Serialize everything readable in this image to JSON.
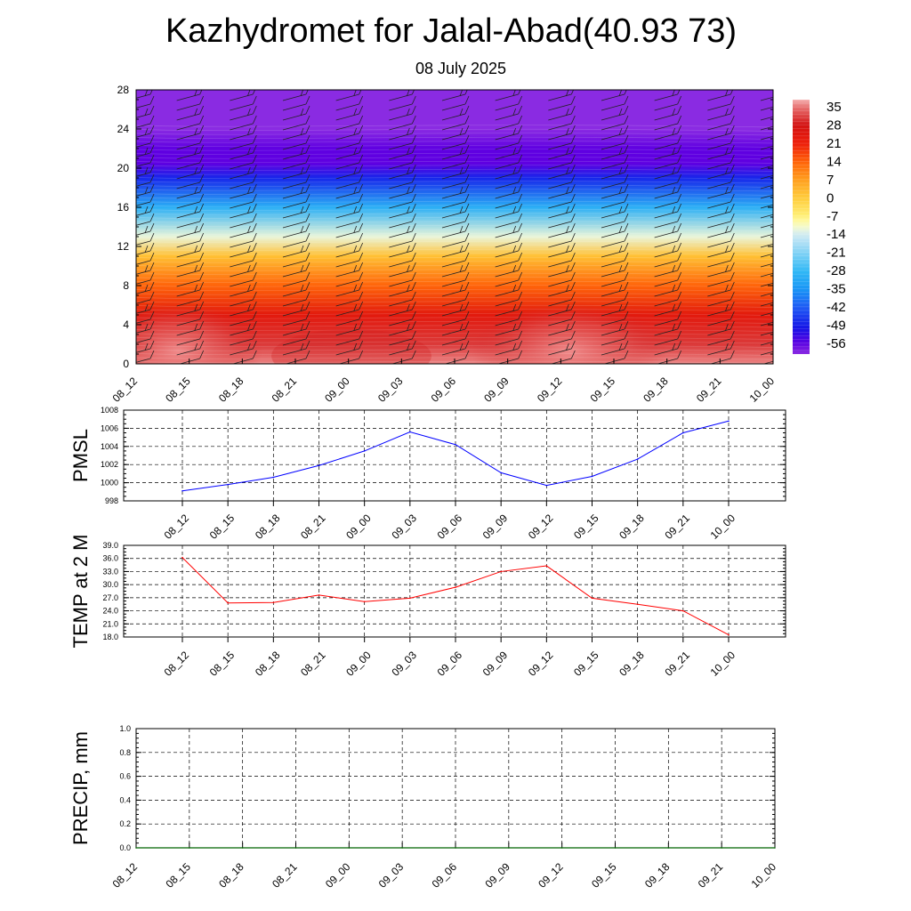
{
  "page": {
    "title": "Kazhydromet for Jalal-Abad(40.93 73)",
    "subtitle": "08 July 2025"
  },
  "chart_data": [
    {
      "id": "vertical-cross-section",
      "type": "heatmap",
      "x_ticks": [
        "08_12",
        "08_15",
        "08_18",
        "08_21",
        "09_00",
        "09_03",
        "09_06",
        "09_09",
        "09_12",
        "09_15",
        "09_18",
        "09_21",
        "10_00"
      ],
      "y_ticks": [
        0,
        4,
        8,
        12,
        16,
        20,
        24,
        28
      ],
      "ylim": [
        0,
        28
      ],
      "colorbar_labels": [
        "35",
        "28",
        "21",
        "14",
        "7",
        "0",
        "-7",
        "-14",
        "-21",
        "-28",
        "-35",
        "-42",
        "-49",
        "-56"
      ],
      "colorbar_range": [
        -60,
        38
      ],
      "temperature_profile": [
        {
          "h": 0,
          "t": 36
        },
        {
          "h": 2,
          "t": 31
        },
        {
          "h": 5,
          "t": 24
        },
        {
          "h": 8,
          "t": 14
        },
        {
          "h": 11,
          "t": 2
        },
        {
          "h": 13,
          "t": -12
        },
        {
          "h": 16,
          "t": -30
        },
        {
          "h": 19,
          "t": -48
        },
        {
          "h": 20.5,
          "t": -56
        },
        {
          "h": 22,
          "t": -56
        },
        {
          "h": 24,
          "t": -60
        },
        {
          "h": 28,
          "t": -60
        }
      ],
      "wind_barbs": true
    },
    {
      "id": "pmsl",
      "type": "line",
      "ylabel": "PMSL",
      "categories": [
        "08_12",
        "08_15",
        "08_18",
        "08_21",
        "09_00",
        "09_03",
        "09_06",
        "09_09",
        "09_12",
        "09_15",
        "09_18",
        "09_21",
        "10_00"
      ],
      "y_ticks": [
        "998",
        "1000",
        "1002",
        "1004",
        "1006",
        "1008"
      ],
      "ylim": [
        998,
        1008
      ],
      "series": [
        {
          "values": [
            999.1,
            999.8,
            1000.6,
            1001.9,
            1003.5,
            1005.6,
            1004.2,
            1001.1,
            999.7,
            1000.7,
            1002.6,
            1005.5,
            1006.8
          ],
          "color": "#0000ff"
        }
      ],
      "grid": true
    },
    {
      "id": "temp-2m",
      "type": "line",
      "ylabel": "TEMP at 2 M",
      "categories": [
        "08_12",
        "08_15",
        "08_18",
        "08_21",
        "09_00",
        "09_03",
        "09_06",
        "09_09",
        "09_12",
        "09_15",
        "09_18",
        "09_21",
        "10_00"
      ],
      "y_ticks": [
        "18.0",
        "21.0",
        "24.0",
        "27.0",
        "30.0",
        "33.0",
        "36.0",
        "39.0"
      ],
      "ylim": [
        18,
        39
      ],
      "series": [
        {
          "values": [
            36.2,
            25.8,
            25.9,
            27.6,
            26.1,
            26.9,
            29.4,
            33.0,
            34.3,
            26.9,
            25.5,
            24.0,
            18.5
          ],
          "color": "#ff0000"
        }
      ],
      "grid": true
    },
    {
      "id": "precip",
      "type": "line",
      "ylabel": "PRECIP, mm",
      "categories": [
        "08_12",
        "08_15",
        "08_18",
        "08_21",
        "09_00",
        "09_03",
        "09_06",
        "09_09",
        "09_12",
        "09_15",
        "09_18",
        "09_21",
        "10_00"
      ],
      "y_ticks": [
        "0.0",
        "0.2",
        "0.4",
        "0.6",
        "0.8",
        "1.0"
      ],
      "ylim": [
        0,
        1
      ],
      "series": [
        {
          "values": [
            0,
            0,
            0,
            0,
            0,
            0,
            0,
            0,
            0,
            0,
            0,
            0,
            0
          ],
          "color": "#006400"
        }
      ],
      "grid": true
    }
  ]
}
